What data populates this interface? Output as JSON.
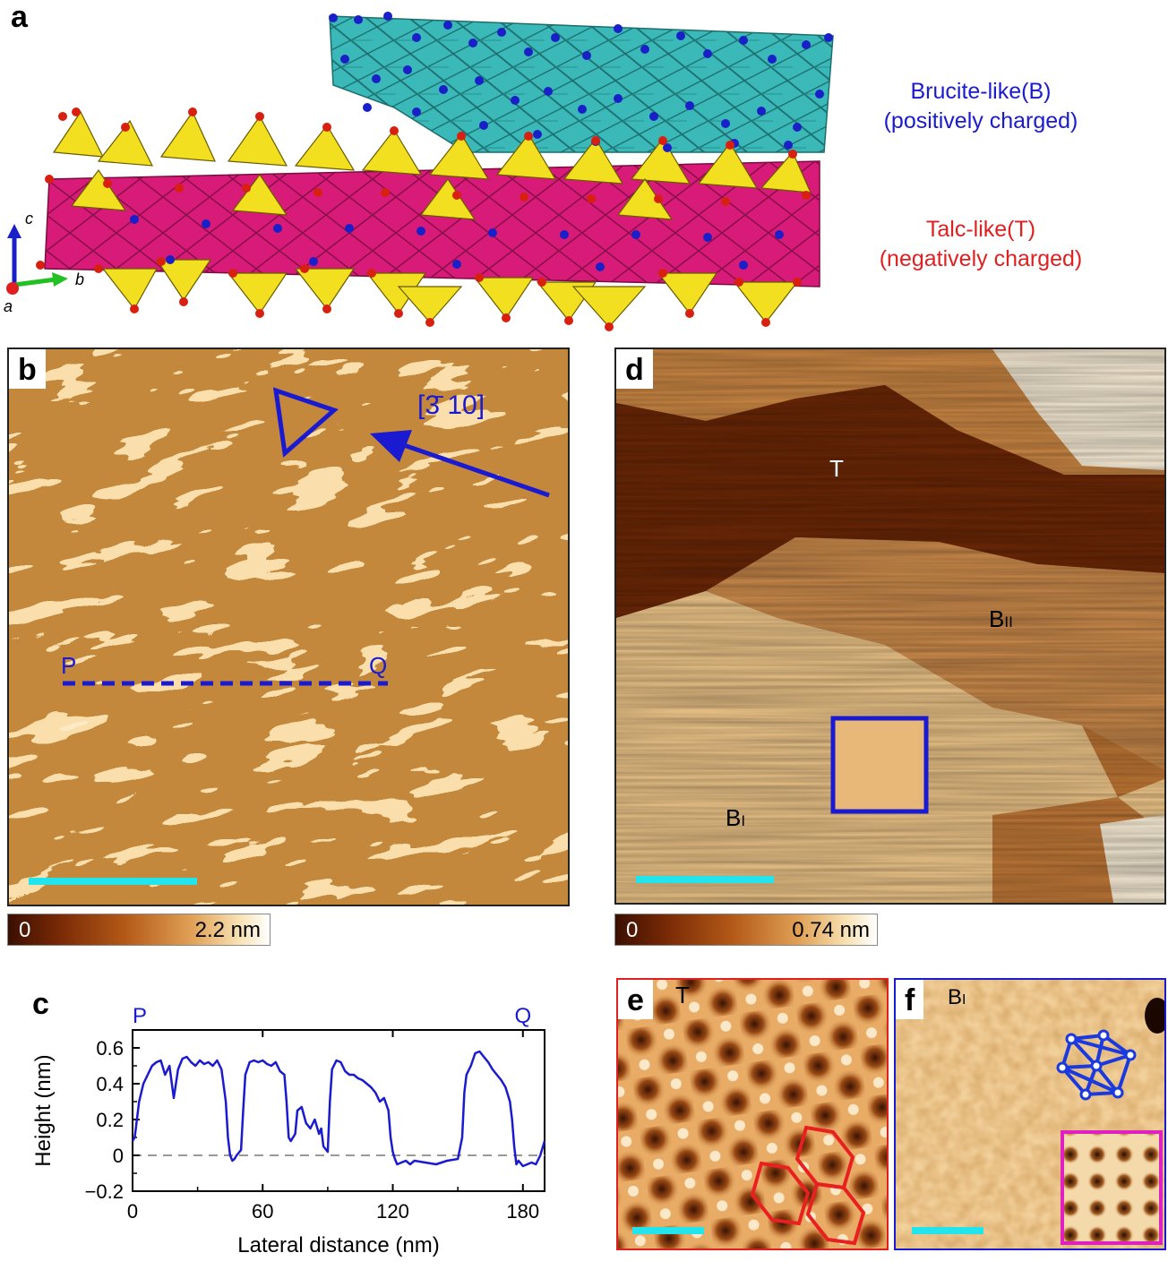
{
  "panels": {
    "a": "a",
    "b": "b",
    "c": "c",
    "d": "d",
    "e": "e",
    "f": "f"
  },
  "panel_a": {
    "brucite_label": "Brucite-like(B)",
    "brucite_sub": "(positively charged)",
    "talc_label": "Talc-like(T)",
    "talc_sub": "(negatively charged)",
    "axis_c": "c",
    "axis_b": "b",
    "axis_a": "a",
    "colors": {
      "brucite": "#3bb8b8",
      "talc_oct": "#d81a78",
      "talc_tet": "#f2e020",
      "atom_blue": "#1a20c8",
      "atom_red": "#d82010"
    }
  },
  "panel_b": {
    "direction": "[3̄ 10]",
    "point_p": "P",
    "point_q": "Q",
    "colorbar_min": "0",
    "colorbar_max": "2.2 nm"
  },
  "panel_d": {
    "region_t": "T",
    "region_bii": "B",
    "region_bii_sub": "II",
    "region_bi": "B",
    "region_bi_sub": "I",
    "colorbar_min": "0",
    "colorbar_max": "0.74 nm"
  },
  "panel_e": {
    "label": "T"
  },
  "panel_f": {
    "label": "B",
    "label_sub": "I"
  },
  "chart_data": {
    "type": "line",
    "title": "",
    "xlabel": "Lateral distance (nm)",
    "ylabel": "Height (nm)",
    "xlim": [
      0,
      190
    ],
    "ylim": [
      -0.2,
      0.7
    ],
    "xticks": [
      0,
      60,
      120,
      180
    ],
    "yticks": [
      -0.2,
      0,
      0.2,
      0.4,
      0.6
    ],
    "xtick_labels": [
      "0",
      "60",
      "120",
      "180"
    ],
    "ytick_labels": [
      "−0.2",
      "0",
      "0.2",
      "0.4",
      "0.6"
    ],
    "top_labels": {
      "start": "P",
      "end": "Q"
    },
    "reference_line": 0,
    "series": [
      {
        "name": "P-Q profile",
        "color": "#1a1ad0",
        "x": [
          0,
          1,
          3,
          5,
          7,
          9,
          11,
          13,
          15,
          17,
          19,
          21,
          23,
          25,
          27,
          29,
          31,
          33,
          35,
          37,
          39,
          41,
          43,
          44,
          45,
          46,
          47,
          48,
          50,
          51,
          52,
          54,
          56,
          58,
          60,
          62,
          64,
          66,
          68,
          70,
          71,
          72,
          73,
          75,
          76,
          78,
          80,
          82,
          84,
          86,
          87,
          88,
          90,
          91,
          92,
          94,
          96,
          98,
          100,
          102,
          104,
          106,
          108,
          110,
          112,
          114,
          116,
          118,
          119,
          120,
          121,
          122,
          124,
          126,
          128,
          130,
          135,
          140,
          145,
          150,
          152,
          153,
          154,
          156,
          158,
          160,
          162,
          164,
          166,
          168,
          170,
          172,
          174,
          175,
          176,
          177,
          178,
          180,
          182,
          184,
          186,
          188,
          190
        ],
        "values": [
          0.08,
          0.1,
          0.3,
          0.4,
          0.45,
          0.5,
          0.52,
          0.53,
          0.45,
          0.5,
          0.32,
          0.48,
          0.54,
          0.55,
          0.52,
          0.5,
          0.53,
          0.51,
          0.52,
          0.5,
          0.53,
          0.48,
          0.3,
          0.1,
          0.0,
          -0.03,
          -0.02,
          0.0,
          0.03,
          0.25,
          0.45,
          0.52,
          0.53,
          0.52,
          0.53,
          0.51,
          0.5,
          0.52,
          0.47,
          0.45,
          0.3,
          0.1,
          0.08,
          0.12,
          0.25,
          0.27,
          0.18,
          0.15,
          0.2,
          0.12,
          0.15,
          0.05,
          0.02,
          0.3,
          0.48,
          0.53,
          0.52,
          0.47,
          0.45,
          0.45,
          0.43,
          0.42,
          0.4,
          0.38,
          0.35,
          0.3,
          0.32,
          0.25,
          0.1,
          0.02,
          -0.02,
          -0.05,
          -0.04,
          -0.03,
          -0.05,
          -0.03,
          -0.04,
          -0.05,
          -0.03,
          -0.02,
          0.1,
          0.35,
          0.45,
          0.5,
          0.57,
          0.58,
          0.55,
          0.52,
          0.48,
          0.45,
          0.42,
          0.38,
          0.3,
          0.2,
          0.05,
          -0.05,
          -0.03,
          -0.06,
          -0.05,
          -0.04,
          -0.05,
          0.0,
          0.08
        ]
      }
    ]
  }
}
